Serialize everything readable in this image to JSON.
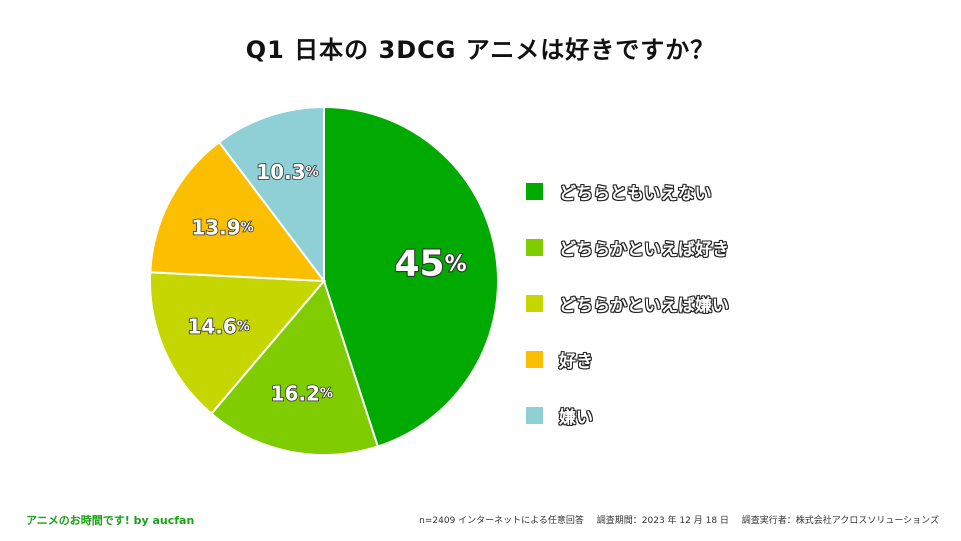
{
  "chart_data": {
    "type": "pie",
    "title": "Q1 日本の 3DCG アニメは好きですか？",
    "slices": [
      {
        "label": "どちらともいえない",
        "value": 45,
        "display": "45",
        "color": "#00aa00"
      },
      {
        "label": "どちらかといえば好き",
        "value": 16.2,
        "display": "16.2",
        "color": "#7fcc00"
      },
      {
        "label": "どちらかといえば嫌い",
        "value": 14.6,
        "display": "14.6",
        "color": "#c5d600"
      },
      {
        "label": "好き",
        "value": 13.9,
        "display": "13.9",
        "color": "#fbbe00"
      },
      {
        "label": "嫌い",
        "value": 10.3,
        "display": "10.3",
        "color": "#8fd0d6"
      }
    ],
    "percent_suffix": "%",
    "legend_position": "right"
  },
  "footer": {
    "brand": "アニメのお時間です! by aucfan",
    "survey_method": "n=2409 インターネットによる任意回答",
    "survey_period": "調査期間：2023 年 12 月 18 日",
    "surveyor": "調査実行者：株式会社アクロスソリューションズ"
  }
}
